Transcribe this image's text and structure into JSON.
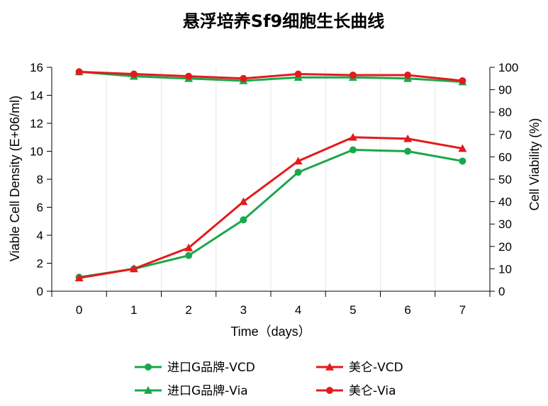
{
  "chart_data": {
    "type": "line",
    "title": "悬浮培养Sf9细胞生长曲线",
    "xlabel": "Time（days）",
    "ylabel_left": "Viable Cell Density (E+06/ml)",
    "ylabel_right": "Cell Viability (%)",
    "x": [
      0,
      1,
      2,
      3,
      4,
      5,
      6,
      7
    ],
    "x_ticks": [
      "0",
      "1",
      "2",
      "3",
      "4",
      "5",
      "6",
      "7"
    ],
    "ylim_left": [
      0,
      16
    ],
    "yticks_left": [
      "0",
      "2",
      "4",
      "6",
      "8",
      "10",
      "12",
      "14",
      "16"
    ],
    "ylim_right": [
      0,
      100
    ],
    "yticks_right": [
      "0",
      "10",
      "20",
      "30",
      "40",
      "50",
      "60",
      "70",
      "80",
      "90",
      "100"
    ],
    "grid": "vertical",
    "legend_position": "bottom",
    "series": [
      {
        "name": "进口G品牌-VCD",
        "axis": "left",
        "color": "#1aa64b",
        "marker": "circle",
        "values": [
          1.0,
          1.6,
          2.55,
          5.1,
          8.5,
          10.1,
          10.0,
          9.3
        ]
      },
      {
        "name": "美仑-VCD",
        "axis": "left",
        "color": "#e31a1c",
        "marker": "triangle",
        "values": [
          0.95,
          1.6,
          3.1,
          6.4,
          9.3,
          11.0,
          10.9,
          10.2
        ]
      },
      {
        "name": "进口G品牌-Via",
        "axis": "right",
        "color": "#1aa64b",
        "marker": "triangle",
        "values": [
          98,
          96,
          95,
          94,
          95.5,
          95.5,
          95,
          93.5
        ]
      },
      {
        "name": "美仑-Via",
        "axis": "right",
        "color": "#e31a1c",
        "marker": "circle",
        "values": [
          98,
          97,
          96,
          95,
          97,
          96.5,
          96.5,
          94
        ]
      }
    ],
    "legend": [
      {
        "name": "进口G品牌-VCD",
        "color": "#1aa64b",
        "marker": "circle"
      },
      {
        "name": "美仑-VCD",
        "color": "#e31a1c",
        "marker": "triangle"
      },
      {
        "name": "进口G品牌-Via",
        "color": "#1aa64b",
        "marker": "triangle"
      },
      {
        "name": "美仑-Via",
        "color": "#e31a1c",
        "marker": "circle"
      }
    ]
  }
}
